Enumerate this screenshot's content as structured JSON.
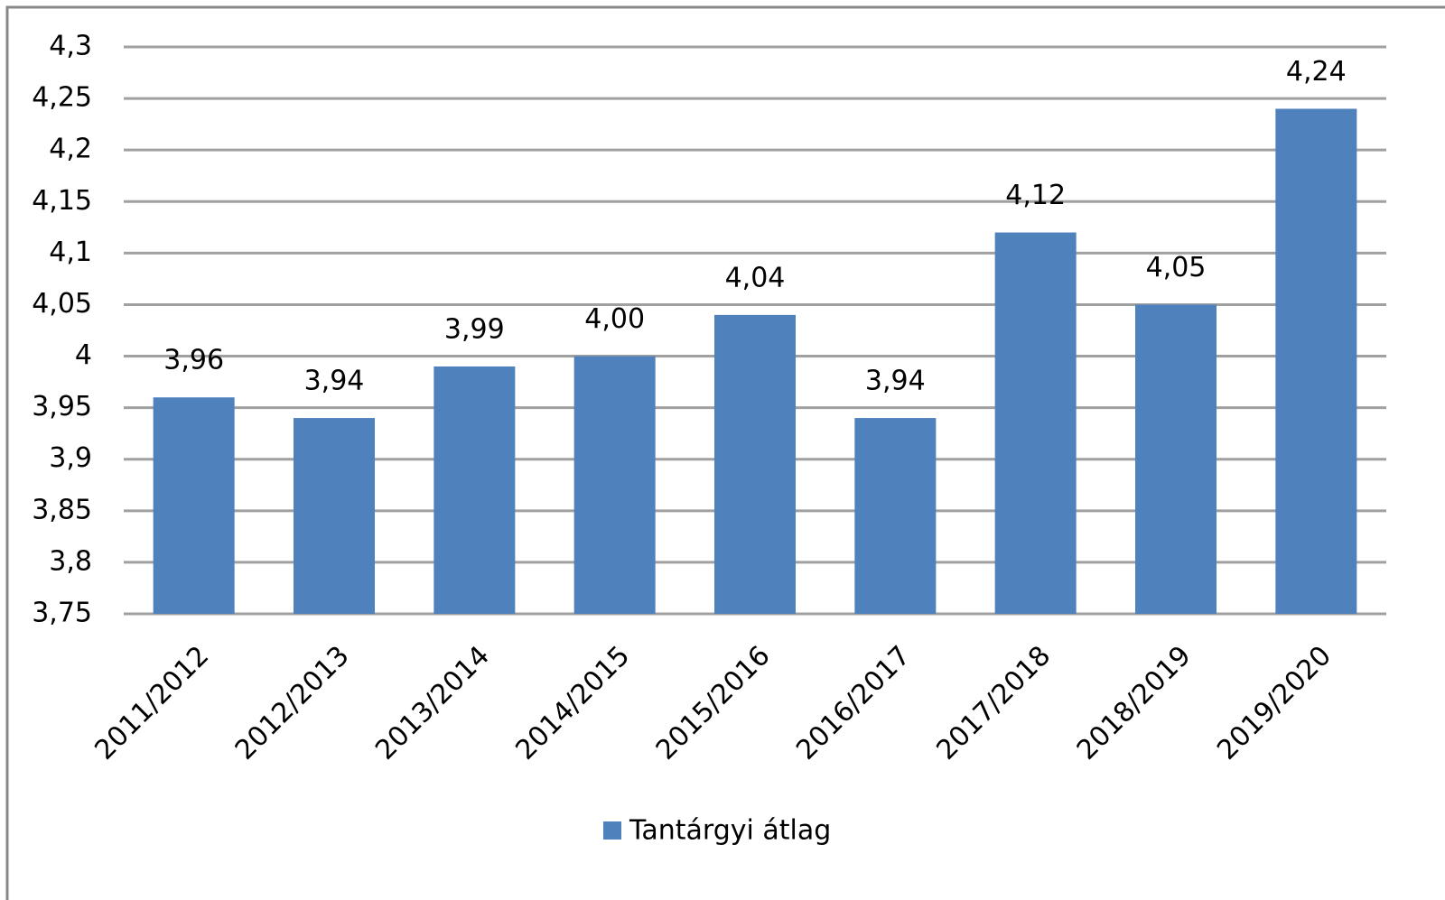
{
  "chart_data": {
    "type": "bar",
    "categories": [
      "2011/2012",
      "2012/2013",
      "2013/2014",
      "2014/2015",
      "2015/2016",
      "2016/2017",
      "2017/2018",
      "2018/2019",
      "2019/2020"
    ],
    "series": [
      {
        "name": "Tantárgyi átlag",
        "color": "#4f81bd",
        "values": [
          3.96,
          3.94,
          3.99,
          4.0,
          4.04,
          3.94,
          4.12,
          4.05,
          4.24
        ],
        "value_labels": [
          "3,96",
          "3,94",
          "3,99",
          "4,00",
          "4,04",
          "3,94",
          "4,12",
          "4,05",
          "4,24"
        ]
      }
    ],
    "ylim": [
      3.75,
      4.3
    ],
    "yticks": [
      {
        "value": 3.75,
        "label": "3,75"
      },
      {
        "value": 3.8,
        "label": "3,8"
      },
      {
        "value": 3.85,
        "label": "3,85"
      },
      {
        "value": 3.9,
        "label": "3,9"
      },
      {
        "value": 3.95,
        "label": "3,95"
      },
      4,
      {
        "value": 4.05,
        "label": "4,05"
      },
      {
        "value": 4.1,
        "label": "4,1"
      },
      {
        "value": 4.15,
        "label": "4,15"
      },
      {
        "value": 4.2,
        "label": "4,2"
      },
      {
        "value": 4.25,
        "label": "4,25"
      },
      {
        "value": 4.3,
        "label": "4,3"
      }
    ],
    "grid": true,
    "legend": "bottom"
  }
}
